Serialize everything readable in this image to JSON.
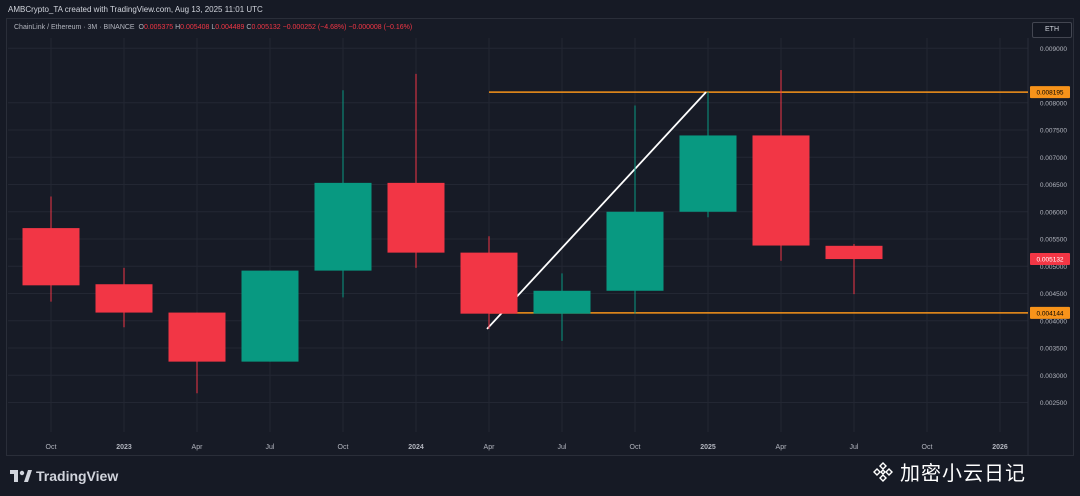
{
  "header": {
    "credit": "AMBCrypto_TA created with TradingView.com, Aug 13, 2025 11:01 UTC",
    "symbol": "ChainLink / Ethereum · 3M · BINANCE",
    "o_label": "O",
    "o_value": "0.005375",
    "h_label": "H",
    "h_value": "0.005408",
    "l_label": "L",
    "l_value": "0.004489",
    "c_label": "C",
    "c_value": "0.005132",
    "change": "−0.000252 (−4.68%)",
    "change2": "−0.000008 (−0.16%)",
    "currency": "ETH"
  },
  "footer": {
    "brand": "TradingView",
    "watermark": "加密小云日记"
  },
  "colors": {
    "up": "#089981",
    "down": "#f23645",
    "level": "#f7931a",
    "trend": "#ffffff",
    "bg": "#161a25",
    "grid": "#232733"
  },
  "chart_data": {
    "type": "candlestick",
    "x_ticks": [
      "Oct",
      "2023",
      "Apr",
      "Jul",
      "Oct",
      "2024",
      "Apr",
      "Jul",
      "Oct",
      "2025",
      "Apr",
      "Jul",
      "Oct",
      "2026"
    ],
    "y_ticks": [
      "0.002500",
      "0.003000",
      "0.003500",
      "0.004000",
      "0.004500",
      "0.005000",
      "0.005500",
      "0.006000",
      "0.006500",
      "0.007000",
      "0.007500",
      "0.008000",
      "0.009000"
    ],
    "ylim": [
      0.00225,
      0.0093
    ],
    "candles": [
      {
        "period": "Oct 2022",
        "open": 0.0057,
        "high": 0.00628,
        "low": 0.00435,
        "close": 0.00465
      },
      {
        "period": "Jan 2023",
        "open": 0.00467,
        "high": 0.00497,
        "low": 0.00388,
        "close": 0.00415
      },
      {
        "period": "Apr 2023",
        "open": 0.00415,
        "high": 0.00415,
        "low": 0.00267,
        "close": 0.00325
      },
      {
        "period": "Jul 2023",
        "open": 0.00325,
        "high": 0.00492,
        "low": 0.00325,
        "close": 0.00492
      },
      {
        "period": "Oct 2023",
        "open": 0.00492,
        "high": 0.00823,
        "low": 0.00443,
        "close": 0.00653
      },
      {
        "period": "Jan 2024",
        "open": 0.00653,
        "high": 0.00853,
        "low": 0.00497,
        "close": 0.00525
      },
      {
        "period": "Apr 2024",
        "open": 0.00525,
        "high": 0.00555,
        "low": 0.00385,
        "close": 0.00413
      },
      {
        "period": "Jul 2024",
        "open": 0.00413,
        "high": 0.00487,
        "low": 0.00363,
        "close": 0.00455
      },
      {
        "period": "Oct 2024",
        "open": 0.00455,
        "high": 0.00795,
        "low": 0.00413,
        "close": 0.006
      },
      {
        "period": "Jan 2025",
        "open": 0.006,
        "high": 0.0082,
        "low": 0.0059,
        "close": 0.0074
      },
      {
        "period": "Apr 2025",
        "open": 0.0074,
        "high": 0.0086,
        "low": 0.0051,
        "close": 0.00538
      },
      {
        "period": "Jul 2025",
        "open": 0.005375,
        "high": 0.005408,
        "low": 0.004489,
        "close": 0.005132
      }
    ],
    "levels": [
      {
        "label": "0.008195",
        "value": 0.008195
      },
      {
        "label": "0.004144",
        "value": 0.004144
      }
    ],
    "last_price": {
      "label": "0.005132",
      "value": 0.005132
    },
    "trendline": {
      "start_value": 0.00385,
      "end_value": 0.008195
    }
  }
}
